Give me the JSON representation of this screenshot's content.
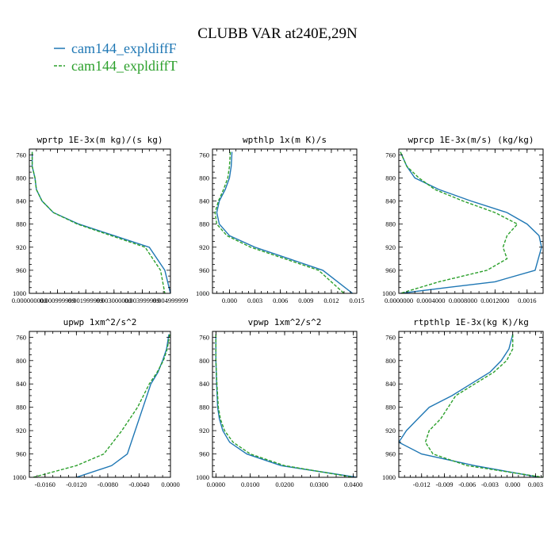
{
  "figure_title": "CLUBB VAR at240E,29N",
  "legend": [
    {
      "label": "cam144_expldiffF",
      "color": "#1f77b4",
      "dash": "solid"
    },
    {
      "label": "cam144_expldiffT",
      "color": "#2ca02c",
      "dash": "dashed"
    }
  ],
  "chart_data": [
    {
      "type": "line",
      "title": "wprtp   1E-3x(m kg)/(s kg)",
      "y_ticks": [
        "760",
        "800",
        "840",
        "880",
        "920",
        "960",
        "1000"
      ],
      "ylim": [
        1000,
        750
      ],
      "xlim": [
        0,
        1
      ],
      "x_ticks": [
        {
          "v": 0.0,
          "label": "0.000000000"
        },
        {
          "v": 0.2,
          "label": "0.000999999"
        },
        {
          "v": 0.4,
          "label": "0.001999999"
        },
        {
          "v": 0.6,
          "label": "0.003000000"
        },
        {
          "v": 0.8,
          "label": "0.003999999"
        },
        {
          "v": 1.0,
          "label": "0.004999999"
        }
      ],
      "series": [
        {
          "name": "cam144_expldiffF",
          "x": [
            0.02,
            0.02,
            0.04,
            0.05,
            0.09,
            0.17,
            0.35,
            0.6,
            0.85,
            0.96,
            1.0
          ],
          "y": [
            755,
            780,
            800,
            820,
            840,
            860,
            880,
            900,
            920,
            960,
            1000
          ]
        },
        {
          "name": "cam144_expldiffT",
          "x": [
            0.02,
            0.02,
            0.04,
            0.05,
            0.09,
            0.17,
            0.34,
            0.58,
            0.82,
            0.93,
            0.96
          ],
          "y": [
            755,
            780,
            800,
            820,
            840,
            860,
            880,
            900,
            920,
            960,
            1000
          ]
        }
      ]
    },
    {
      "type": "line",
      "title": "wpthlp   1x(m K)/s",
      "y_ticks": [
        "760",
        "800",
        "840",
        "880",
        "920",
        "960",
        "1000"
      ],
      "ylim": [
        1000,
        750
      ],
      "xlim": [
        -0.002,
        0.015
      ],
      "x_ticks": [
        {
          "v": 0.0,
          "label": "0.000"
        },
        {
          "v": 0.003,
          "label": "0.003"
        },
        {
          "v": 0.006,
          "label": "0.006"
        },
        {
          "v": 0.009,
          "label": "0.009"
        },
        {
          "v": 0.012,
          "label": "0.012"
        },
        {
          "v": 0.015,
          "label": "0.015"
        }
      ],
      "series": [
        {
          "name": "cam144_expldiffF",
          "x": [
            0.0003,
            0.0002,
            0.0,
            -0.0005,
            -0.0012,
            -0.0015,
            -0.0012,
            0.0,
            0.003,
            0.007,
            0.011,
            0.0145
          ],
          "y": [
            755,
            780,
            800,
            820,
            840,
            860,
            880,
            900,
            920,
            940,
            960,
            1000
          ]
        },
        {
          "name": "cam144_expldiffT",
          "x": [
            0.0001,
            0.0,
            -0.0002,
            -0.0007,
            -0.0013,
            -0.0017,
            -0.0015,
            -0.0003,
            0.0025,
            0.0065,
            0.0105,
            0.0135
          ],
          "y": [
            755,
            780,
            800,
            820,
            840,
            860,
            880,
            900,
            920,
            940,
            960,
            1000
          ]
        }
      ]
    },
    {
      "type": "line",
      "title": "wprcp   1E-3x(m/s) (kg/kg)",
      "y_ticks": [
        "760",
        "800",
        "840",
        "880",
        "920",
        "960",
        "1000"
      ],
      "ylim": [
        1000,
        750
      ],
      "xlim": [
        0,
        0.0018
      ],
      "x_ticks": [
        {
          "v": 0.0,
          "label": "0.0000000"
        },
        {
          "v": 0.0004,
          "label": "0.0004000"
        },
        {
          "v": 0.0008,
          "label": "0.0008000"
        },
        {
          "v": 0.0012,
          "label": "0.0012000"
        },
        {
          "v": 0.0016,
          "label": "0.0016"
        }
      ],
      "series": [
        {
          "name": "cam144_expldiffF",
          "x": [
            2e-05,
            0.0001,
            0.0002,
            0.0005,
            0.0009,
            0.00135,
            0.0016,
            0.00175,
            0.00178,
            0.0017,
            0.0012,
            0.0006,
            2e-05
          ],
          "y": [
            755,
            780,
            800,
            820,
            840,
            860,
            880,
            900,
            920,
            960,
            980,
            990,
            1000
          ]
        },
        {
          "name": "cam144_expldiffT",
          "x": [
            2e-05,
            0.0001,
            0.00025,
            0.00045,
            0.0008,
            0.0012,
            0.00148,
            0.00135,
            0.0013,
            0.00135,
            0.0011,
            0.0005,
            2e-05
          ],
          "y": [
            755,
            780,
            800,
            820,
            840,
            860,
            880,
            900,
            920,
            940,
            960,
            980,
            1000
          ]
        }
      ]
    },
    {
      "type": "line",
      "title": "upwp   1xm^2/s^2",
      "y_ticks": [
        "760",
        "800",
        "840",
        "880",
        "920",
        "960",
        "1000"
      ],
      "ylim": [
        1000,
        750
      ],
      "xlim": [
        -0.018,
        0.0
      ],
      "x_ticks": [
        {
          "v": -0.016,
          "label": "-0.0160"
        },
        {
          "v": -0.012,
          "label": "-0.0120"
        },
        {
          "v": -0.008,
          "label": "-0.0080"
        },
        {
          "v": -0.004,
          "label": "-0.0040"
        },
        {
          "v": 0.0,
          "label": "0.0000"
        }
      ],
      "series": [
        {
          "name": "cam144_expldiffF",
          "x": [
            -0.0002,
            -0.0005,
            -0.001,
            -0.0016,
            -0.0025,
            -0.0035,
            -0.0045,
            -0.0055,
            -0.0075,
            -0.012
          ],
          "y": [
            755,
            780,
            800,
            820,
            840,
            880,
            920,
            960,
            980,
            1000
          ]
        },
        {
          "name": "cam144_expldiffT",
          "x": [
            -0.0001,
            -0.0004,
            -0.0009,
            -0.0017,
            -0.0027,
            -0.0042,
            -0.0062,
            -0.0085,
            -0.012,
            -0.0175
          ],
          "y": [
            755,
            780,
            800,
            820,
            840,
            880,
            920,
            960,
            980,
            1000
          ]
        }
      ]
    },
    {
      "type": "line",
      "title": "vpwp   1xm^2/s^2",
      "y_ticks": [
        "760",
        "800",
        "840",
        "880",
        "920",
        "960",
        "1000"
      ],
      "ylim": [
        1000,
        750
      ],
      "xlim": [
        -0.001,
        0.041
      ],
      "x_ticks": [
        {
          "v": 0.0,
          "label": "0.0000"
        },
        {
          "v": 0.01,
          "label": "0.0100"
        },
        {
          "v": 0.02,
          "label": "0.0200"
        },
        {
          "v": 0.03,
          "label": "0.0300"
        },
        {
          "v": 0.04,
          "label": "0.0400"
        }
      ],
      "series": [
        {
          "name": "cam144_expldiffF",
          "x": [
            0.0,
            0.0,
            0.0,
            0.0002,
            0.0005,
            0.001,
            0.002,
            0.004,
            0.009,
            0.019,
            0.041
          ],
          "y": [
            755,
            780,
            800,
            840,
            880,
            900,
            920,
            940,
            960,
            980,
            1000
          ]
        },
        {
          "name": "cam144_expldiffT",
          "x": [
            0.0,
            0.0,
            0.0,
            0.0003,
            0.0007,
            0.0013,
            0.0025,
            0.005,
            0.01,
            0.02,
            0.04
          ],
          "y": [
            755,
            780,
            800,
            840,
            880,
            900,
            920,
            940,
            960,
            980,
            1000
          ]
        }
      ]
    },
    {
      "type": "line",
      "title": "rtpthlp   1E-3x(kg K)/kg",
      "y_ticks": [
        "760",
        "800",
        "840",
        "880",
        "920",
        "960",
        "1000"
      ],
      "ylim": [
        1000,
        750
      ],
      "xlim": [
        -0.015,
        0.004
      ],
      "x_ticks": [
        {
          "v": -0.012,
          "label": "-0.012"
        },
        {
          "v": -0.009,
          "label": "-0.009"
        },
        {
          "v": -0.006,
          "label": "-0.006"
        },
        {
          "v": -0.003,
          "label": "-0.003"
        },
        {
          "v": 0.0,
          "label": "0.000"
        },
        {
          "v": 0.003,
          "label": "0.003"
        }
      ],
      "series": [
        {
          "name": "cam144_expldiffF",
          "x": [
            0.0,
            -0.0005,
            -0.0015,
            -0.003,
            -0.0055,
            -0.008,
            -0.011,
            -0.0125,
            -0.014,
            -0.015,
            -0.012,
            -0.005,
            0.0035
          ],
          "y": [
            755,
            780,
            800,
            820,
            840,
            860,
            880,
            900,
            920,
            940,
            960,
            980,
            1000
          ]
        },
        {
          "name": "cam144_expldiffT",
          "x": [
            0.0,
            0.0,
            -0.0008,
            -0.0025,
            -0.005,
            -0.0075,
            -0.0085,
            -0.0095,
            -0.011,
            -0.0115,
            -0.0105,
            -0.006,
            0.004
          ],
          "y": [
            755,
            780,
            800,
            820,
            840,
            860,
            880,
            900,
            920,
            940,
            960,
            980,
            1000
          ]
        }
      ]
    }
  ]
}
